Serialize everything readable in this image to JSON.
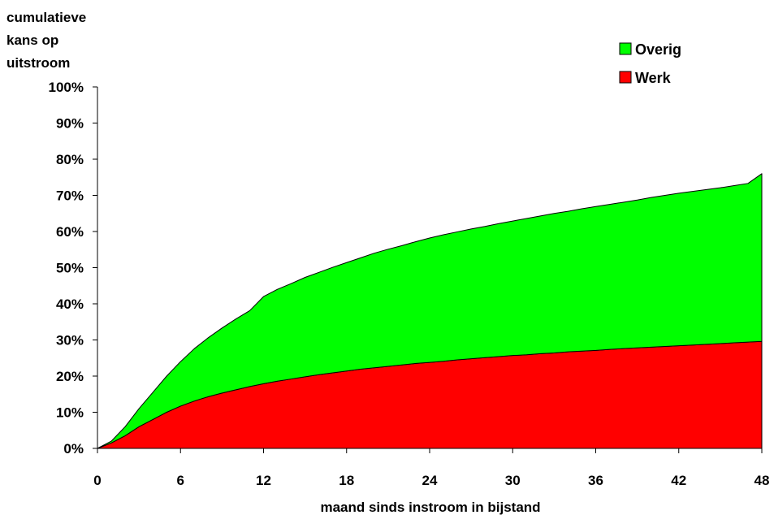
{
  "chart_data": {
    "type": "area",
    "stacked": true,
    "title": "",
    "ylabel_lines": [
      "cumulatieve",
      "kans op",
      "uitstroom"
    ],
    "xlabel": "maand sinds instroom in bijstand",
    "x_ticks": [
      "0",
      "6",
      "12",
      "18",
      "24",
      "30",
      "36",
      "42",
      "48"
    ],
    "y_ticks": [
      "0%",
      "10%",
      "20%",
      "30%",
      "40%",
      "50%",
      "60%",
      "70%",
      "80%",
      "90%",
      "100%"
    ],
    "xlim": [
      0,
      48
    ],
    "ylim": [
      0,
      100
    ],
    "legend_position": "top-right",
    "x": [
      0,
      1,
      2,
      3,
      4,
      5,
      6,
      7,
      8,
      9,
      10,
      11,
      12,
      13,
      14,
      15,
      16,
      17,
      18,
      19,
      20,
      21,
      22,
      23,
      24,
      25,
      26,
      27,
      28,
      29,
      30,
      31,
      32,
      33,
      34,
      35,
      36,
      37,
      38,
      39,
      40,
      41,
      42,
      43,
      44,
      45,
      46,
      47,
      48
    ],
    "series": [
      {
        "name": "Werk",
        "color": "#ff0000",
        "values": [
          0,
          1.5,
          3.5,
          6,
          8,
          10,
          11.7,
          13.1,
          14.3,
          15.3,
          16.2,
          17.1,
          17.9,
          18.6,
          19.2,
          19.8,
          20.4,
          20.9,
          21.4,
          21.9,
          22.3,
          22.7,
          23.1,
          23.5,
          23.8,
          24.1,
          24.5,
          24.8,
          25.1,
          25.4,
          25.7,
          25.9,
          26.2,
          26.4,
          26.7,
          26.9,
          27.1,
          27.4,
          27.6,
          27.8,
          28,
          28.2,
          28.4,
          28.6,
          28.8,
          29,
          29.2,
          29.4,
          29.6
        ]
      },
      {
        "name": "Overig",
        "color": "#00ff00",
        "values": [
          0,
          0.5,
          2.5,
          5,
          7.5,
          10,
          12.3,
          14.5,
          16.3,
          18,
          19.6,
          21,
          24.1,
          25.4,
          26.4,
          27.5,
          28.3,
          29.2,
          30,
          30.8,
          31.7,
          32.4,
          33,
          33.7,
          34.4,
          35,
          35.4,
          35.9,
          36.3,
          36.8,
          37.2,
          37.7,
          38.1,
          38.6,
          38.9,
          39.4,
          39.8,
          40.1,
          40.5,
          40.9,
          41.4,
          41.8,
          42.2,
          42.5,
          42.8,
          43.1,
          43.5,
          43.9,
          46.4
        ]
      }
    ]
  }
}
